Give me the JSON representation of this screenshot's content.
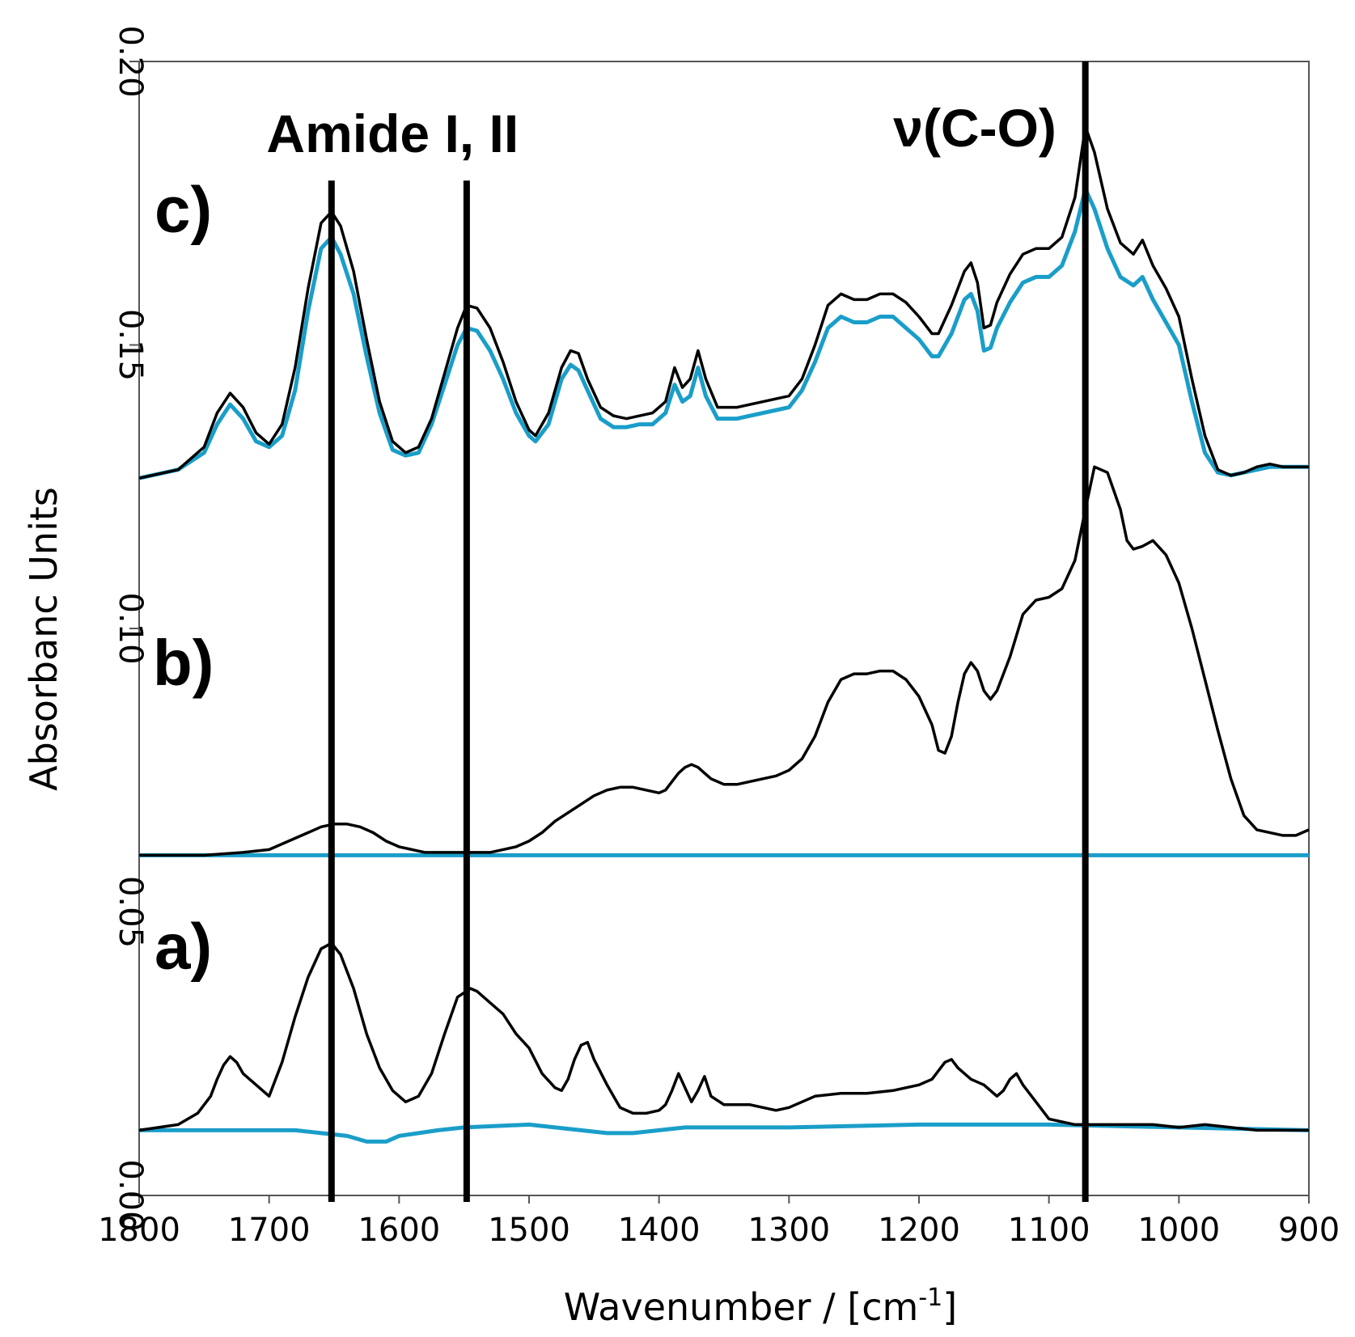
{
  "chart_data": {
    "type": "line",
    "xlabel": "Wavenumber / [cm",
    "xlabel_sup": "-1",
    "xlabel_end": "]",
    "ylabel": "Absorbanc Units",
    "xlim": [
      1800,
      900
    ],
    "ylim": [
      0.0,
      0.2
    ],
    "x_reversed": true,
    "grid": false,
    "x_ticks": [
      "1800",
      "1700",
      "1600",
      "1500",
      "1400",
      "1300",
      "1200",
      "1100",
      "1000",
      "900"
    ],
    "y_ticks": [
      "0.00",
      "0.05",
      "0.10",
      "0.15",
      "0.20"
    ],
    "colors": {
      "black_trace": "#000000",
      "blue_trace": "#1a9ec9"
    },
    "annotations": [
      {
        "text": "Amide I, II",
        "x": 1605,
        "y": 0.184
      },
      {
        "text": "ν(C-O)",
        "x": 1157,
        "y": 0.185
      }
    ],
    "reference_lines": [
      {
        "x": 1652,
        "y_range": [
          0.0,
          0.179
        ]
      },
      {
        "x": 1548,
        "y_range": [
          0.0,
          0.179
        ]
      },
      {
        "x": 1072,
        "y_range": [
          0.0,
          0.2
        ]
      }
    ],
    "panel_labels": [
      {
        "text": "c)",
        "x": 1766,
        "y": 0.17
      },
      {
        "text": "b)",
        "x": 1766,
        "y": 0.09
      },
      {
        "text": "a)",
        "x": 1766,
        "y": 0.04
      }
    ],
    "series": [
      {
        "color": "#000000",
        "x": [
          1800,
          1770,
          1750,
          1740,
          1730,
          1720,
          1710,
          1700,
          1690,
          1680,
          1670,
          1660,
          1652,
          1645,
          1635,
          1625,
          1615,
          1605,
          1595,
          1585,
          1575,
          1565,
          1555,
          1548,
          1540,
          1530,
          1520,
          1510,
          1500,
          1495,
          1485,
          1475,
          1468,
          1462,
          1455,
          1445,
          1435,
          1425,
          1415,
          1405,
          1395,
          1388,
          1382,
          1376,
          1370,
          1364,
          1355,
          1340,
          1320,
          1300,
          1290,
          1280,
          1270,
          1260,
          1250,
          1240,
          1230,
          1220,
          1210,
          1200,
          1190,
          1185,
          1175,
          1165,
          1160,
          1155,
          1150,
          1145,
          1140,
          1130,
          1120,
          1110,
          1100,
          1090,
          1080,
          1072,
          1065,
          1055,
          1045,
          1035,
          1028,
          1020,
          1010,
          1000,
          990,
          980,
          970,
          960,
          950,
          940,
          930,
          920,
          910,
          900
        ],
        "y": [
          0.1265,
          0.128,
          0.132,
          0.138,
          0.1415,
          0.139,
          0.1345,
          0.1325,
          0.136,
          0.146,
          0.16,
          0.1715,
          0.1735,
          0.171,
          0.163,
          0.151,
          0.14,
          0.133,
          0.131,
          0.132,
          0.137,
          0.145,
          0.153,
          0.157,
          0.1565,
          0.153,
          0.147,
          0.14,
          0.135,
          0.134,
          0.138,
          0.146,
          0.149,
          0.1485,
          0.144,
          0.139,
          0.1375,
          0.137,
          0.1375,
          0.138,
          0.14,
          0.146,
          0.1425,
          0.144,
          0.149,
          0.144,
          0.139,
          0.139,
          0.14,
          0.141,
          0.144,
          0.15,
          0.157,
          0.159,
          0.158,
          0.158,
          0.159,
          0.159,
          0.1575,
          0.155,
          0.152,
          0.152,
          0.157,
          0.163,
          0.1645,
          0.161,
          0.153,
          0.1535,
          0.1575,
          0.1625,
          0.166,
          0.167,
          0.167,
          0.169,
          0.176,
          0.1885,
          0.184,
          0.174,
          0.168,
          0.166,
          0.1685,
          0.164,
          0.16,
          0.155,
          0.144,
          0.134,
          0.128,
          0.127,
          0.1275,
          0.1285,
          0.129,
          0.1285,
          0.1285,
          0.1285
        ]
      },
      {
        "color": "#1a9ec9",
        "x": [
          1800,
          1770,
          1750,
          1740,
          1730,
          1720,
          1710,
          1700,
          1690,
          1680,
          1670,
          1660,
          1652,
          1645,
          1635,
          1625,
          1615,
          1605,
          1595,
          1585,
          1575,
          1565,
          1555,
          1548,
          1540,
          1530,
          1520,
          1510,
          1500,
          1495,
          1485,
          1475,
          1468,
          1462,
          1455,
          1445,
          1435,
          1425,
          1415,
          1405,
          1395,
          1388,
          1382,
          1376,
          1370,
          1364,
          1355,
          1340,
          1320,
          1300,
          1290,
          1280,
          1270,
          1260,
          1250,
          1240,
          1230,
          1220,
          1210,
          1200,
          1190,
          1185,
          1175,
          1165,
          1160,
          1155,
          1150,
          1145,
          1140,
          1130,
          1120,
          1110,
          1100,
          1090,
          1080,
          1072,
          1065,
          1055,
          1045,
          1035,
          1028,
          1020,
          1010,
          1000,
          990,
          980,
          970,
          960,
          950,
          940,
          930,
          920,
          910,
          900
        ],
        "y": [
          0.1265,
          0.128,
          0.131,
          0.136,
          0.1395,
          0.137,
          0.133,
          0.132,
          0.134,
          0.142,
          0.156,
          0.167,
          0.169,
          0.166,
          0.159,
          0.148,
          0.138,
          0.1315,
          0.1305,
          0.131,
          0.136,
          0.143,
          0.15,
          0.153,
          0.1525,
          0.149,
          0.144,
          0.138,
          0.134,
          0.133,
          0.136,
          0.144,
          0.1465,
          0.1455,
          0.142,
          0.137,
          0.1355,
          0.1355,
          0.136,
          0.136,
          0.138,
          0.143,
          0.14,
          0.141,
          0.146,
          0.141,
          0.137,
          0.137,
          0.138,
          0.139,
          0.142,
          0.147,
          0.153,
          0.155,
          0.154,
          0.154,
          0.155,
          0.155,
          0.153,
          0.151,
          0.148,
          0.148,
          0.152,
          0.158,
          0.159,
          0.156,
          0.149,
          0.1495,
          0.153,
          0.1575,
          0.161,
          0.162,
          0.162,
          0.164,
          0.17,
          0.1775,
          0.174,
          0.167,
          0.162,
          0.1605,
          0.162,
          0.158,
          0.154,
          0.15,
          0.14,
          0.131,
          0.1275,
          0.127,
          0.1275,
          0.128,
          0.1285,
          0.1285,
          0.1285,
          0.1285
        ]
      },
      {
        "color": "#000000",
        "x": [
          1800,
          1750,
          1720,
          1700,
          1685,
          1670,
          1660,
          1650,
          1640,
          1630,
          1620,
          1610,
          1600,
          1590,
          1580,
          1570,
          1560,
          1550,
          1540,
          1530,
          1520,
          1510,
          1500,
          1490,
          1480,
          1470,
          1460,
          1450,
          1440,
          1430,
          1420,
          1410,
          1400,
          1395,
          1390,
          1385,
          1380,
          1375,
          1370,
          1365,
          1360,
          1350,
          1340,
          1330,
          1320,
          1310,
          1300,
          1290,
          1280,
          1270,
          1260,
          1250,
          1240,
          1230,
          1220,
          1210,
          1200,
          1190,
          1185,
          1180,
          1175,
          1170,
          1165,
          1160,
          1155,
          1150,
          1145,
          1140,
          1130,
          1120,
          1110,
          1100,
          1090,
          1080,
          1072,
          1065,
          1055,
          1045,
          1040,
          1035,
          1028,
          1020,
          1010,
          1000,
          990,
          980,
          970,
          960,
          950,
          940,
          930,
          920,
          910,
          900
        ],
        "y": [
          0.06,
          0.06,
          0.0605,
          0.061,
          0.0625,
          0.064,
          0.065,
          0.0655,
          0.0655,
          0.065,
          0.064,
          0.0625,
          0.0615,
          0.061,
          0.0605,
          0.0605,
          0.0605,
          0.0605,
          0.0605,
          0.0605,
          0.061,
          0.0615,
          0.0625,
          0.064,
          0.066,
          0.0675,
          0.069,
          0.0705,
          0.0715,
          0.072,
          0.072,
          0.0715,
          0.071,
          0.0715,
          0.073,
          0.0745,
          0.0755,
          0.076,
          0.0755,
          0.0745,
          0.0735,
          0.0725,
          0.0725,
          0.073,
          0.0735,
          0.074,
          0.075,
          0.077,
          0.081,
          0.087,
          0.091,
          0.092,
          0.092,
          0.0925,
          0.0925,
          0.091,
          0.088,
          0.083,
          0.0785,
          0.078,
          0.081,
          0.087,
          0.092,
          0.094,
          0.0925,
          0.089,
          0.0875,
          0.089,
          0.095,
          0.1025,
          0.105,
          0.1055,
          0.107,
          0.112,
          0.121,
          0.1285,
          0.1275,
          0.121,
          0.1155,
          0.114,
          0.1145,
          0.1155,
          0.113,
          0.108,
          0.1,
          0.091,
          0.082,
          0.0735,
          0.067,
          0.0645,
          0.064,
          0.0635,
          0.0635,
          0.0645
        ]
      },
      {
        "color": "#1a9ec9",
        "x": [
          1800,
          1700,
          1600,
          1500,
          1400,
          1300,
          1200,
          1100,
          1000,
          900
        ],
        "y": [
          0.06,
          0.06,
          0.06,
          0.06,
          0.06,
          0.06,
          0.06,
          0.06,
          0.06,
          0.06
        ]
      },
      {
        "color": "#000000",
        "x": [
          1800,
          1770,
          1755,
          1745,
          1740,
          1735,
          1730,
          1725,
          1720,
          1710,
          1700,
          1690,
          1680,
          1670,
          1660,
          1652,
          1645,
          1635,
          1625,
          1615,
          1605,
          1595,
          1585,
          1575,
          1565,
          1555,
          1545,
          1540,
          1530,
          1520,
          1510,
          1500,
          1490,
          1480,
          1475,
          1470,
          1465,
          1460,
          1455,
          1450,
          1440,
          1430,
          1420,
          1410,
          1400,
          1395,
          1390,
          1385,
          1380,
          1375,
          1370,
          1365,
          1360,
          1350,
          1340,
          1330,
          1320,
          1310,
          1300,
          1290,
          1280,
          1260,
          1240,
          1220,
          1200,
          1190,
          1185,
          1180,
          1175,
          1170,
          1160,
          1150,
          1140,
          1135,
          1130,
          1125,
          1120,
          1110,
          1100,
          1090,
          1080,
          1070,
          1060,
          1050,
          1040,
          1030,
          1020,
          1000,
          980,
          960,
          940,
          920,
          900
        ],
        "y": [
          0.0115,
          0.0125,
          0.0145,
          0.0175,
          0.0205,
          0.023,
          0.0245,
          0.0235,
          0.0215,
          0.0195,
          0.0175,
          0.0235,
          0.0315,
          0.0385,
          0.0435,
          0.0445,
          0.0425,
          0.0365,
          0.0285,
          0.0225,
          0.0185,
          0.0165,
          0.0175,
          0.0215,
          0.0285,
          0.035,
          0.0365,
          0.036,
          0.034,
          0.032,
          0.0285,
          0.026,
          0.0215,
          0.019,
          0.0185,
          0.0205,
          0.024,
          0.0265,
          0.027,
          0.024,
          0.0195,
          0.0155,
          0.0145,
          0.0145,
          0.015,
          0.016,
          0.0185,
          0.0215,
          0.019,
          0.0165,
          0.0185,
          0.021,
          0.0175,
          0.016,
          0.016,
          0.016,
          0.0155,
          0.015,
          0.0155,
          0.0165,
          0.0175,
          0.018,
          0.018,
          0.0185,
          0.0195,
          0.0205,
          0.022,
          0.0235,
          0.024,
          0.0225,
          0.0205,
          0.0195,
          0.0175,
          0.0185,
          0.0205,
          0.0215,
          0.0195,
          0.0165,
          0.0135,
          0.013,
          0.0125,
          0.0125,
          0.0125,
          0.0125,
          0.0125,
          0.0125,
          0.0125,
          0.012,
          0.0125,
          0.012,
          0.0115,
          0.0115,
          0.0115
        ]
      },
      {
        "color": "#1a9ec9",
        "x": [
          1800,
          1750,
          1700,
          1680,
          1660,
          1640,
          1625,
          1610,
          1600,
          1585,
          1570,
          1550,
          1500,
          1480,
          1460,
          1440,
          1420,
          1400,
          1380,
          1350,
          1300,
          1200,
          1100,
          1000,
          900
        ],
        "y": [
          0.0115,
          0.0115,
          0.0115,
          0.0115,
          0.011,
          0.0105,
          0.0095,
          0.0095,
          0.0105,
          0.011,
          0.0115,
          0.012,
          0.0125,
          0.012,
          0.0115,
          0.011,
          0.011,
          0.0115,
          0.012,
          0.012,
          0.012,
          0.0125,
          0.0125,
          0.012,
          0.0115
        ]
      }
    ]
  }
}
